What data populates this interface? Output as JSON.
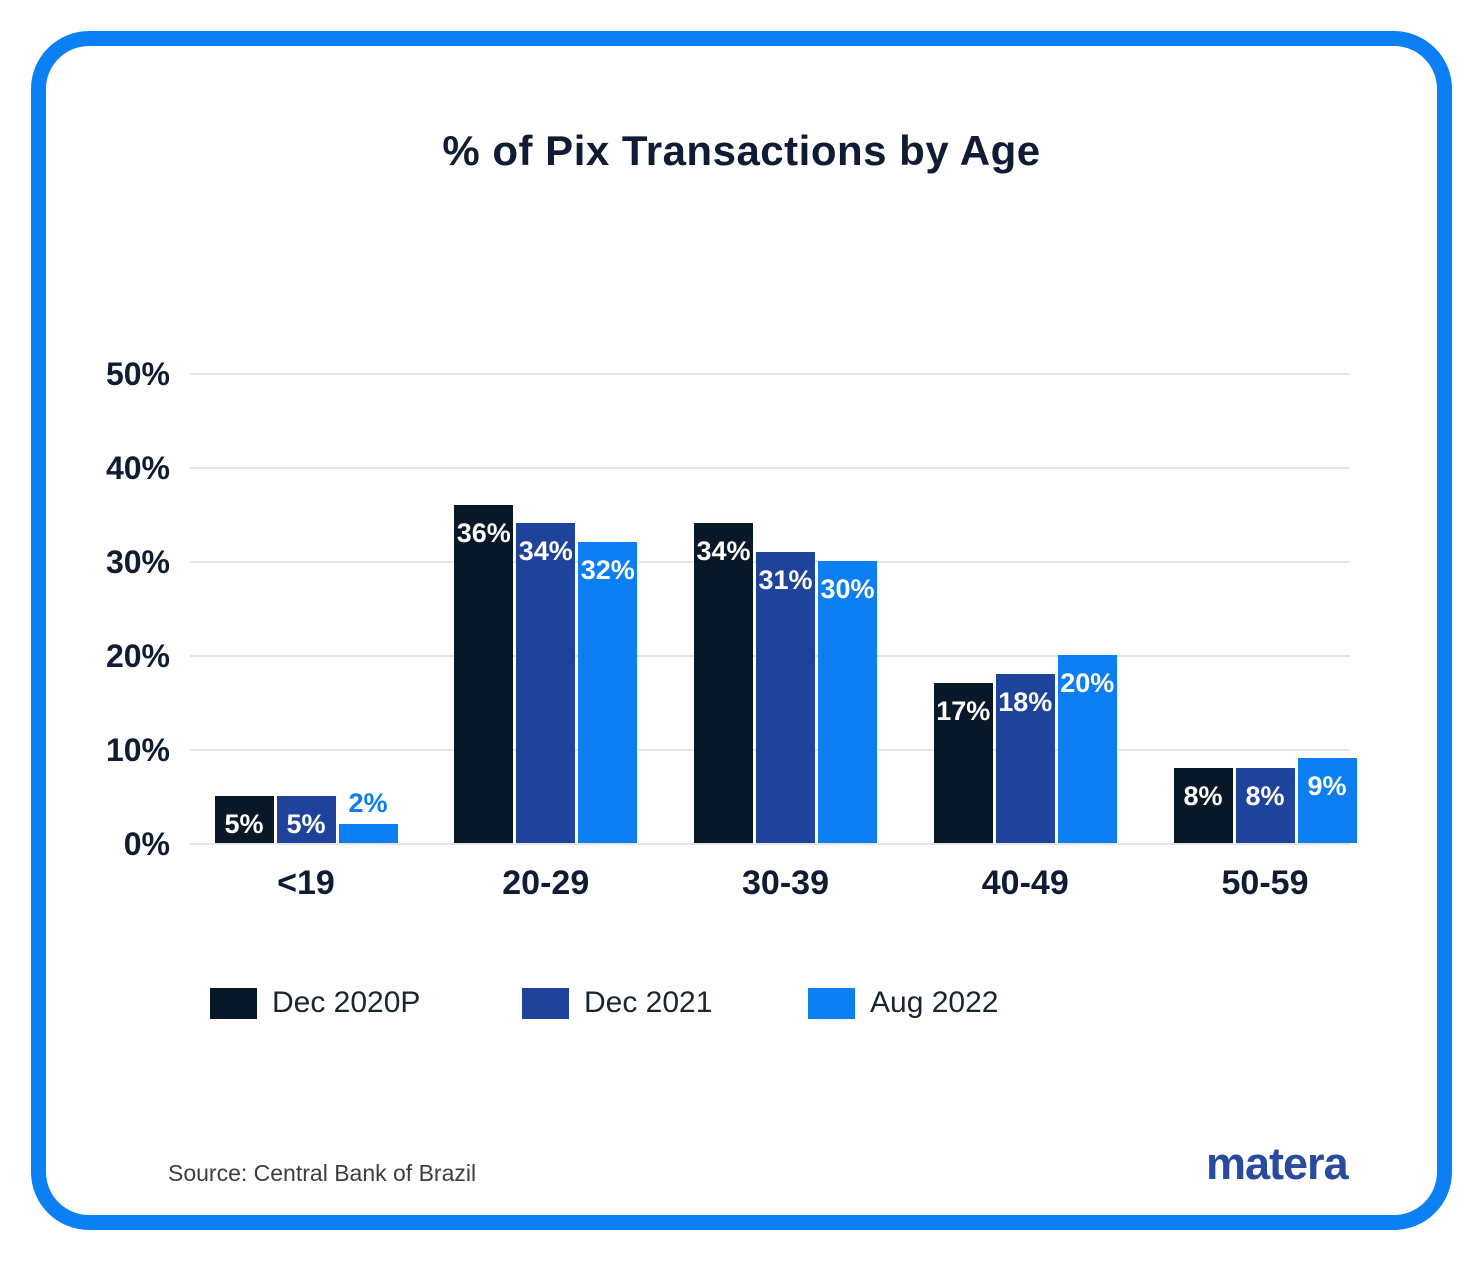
{
  "chart_data": {
    "type": "bar",
    "title": "% of Pix Transactions by Age",
    "categories": [
      "<19",
      "20-29",
      "30-39",
      "40-49",
      "50-59"
    ],
    "series": [
      {
        "name": "Dec 2020P",
        "color": "#081828",
        "values": [
          5,
          36,
          34,
          17,
          8
        ]
      },
      {
        "name": "Dec 2021",
        "color": "#1f439a",
        "values": [
          5,
          34,
          31,
          18,
          8
        ]
      },
      {
        "name": "Aug 2022",
        "color": "#0b7ff2",
        "values": [
          2,
          32,
          30,
          20,
          9
        ]
      }
    ],
    "value_labels": {
      "Dec 2020P": [
        "5%",
        "36%",
        "34%",
        "17%",
        "8%"
      ],
      "Dec 2021": [
        "5%",
        "34%",
        "31%",
        "18%",
        "8%"
      ],
      "Aug 2022": [
        "2%",
        "32%",
        "30%",
        "20%",
        "9%"
      ]
    },
    "y_ticks": [
      "50%",
      "40%",
      "30%",
      "20%",
      "10%",
      "0%"
    ],
    "ylim": [
      0,
      50
    ],
    "grid": true,
    "legend_position": "bottom-left"
  },
  "footer": {
    "source": "Source: Central Bank of Brazil",
    "logo_text": "matera"
  },
  "colors": {
    "frame": "#0b80f5",
    "heading_text": "#0f1c33",
    "gridline": "#e6e6ea",
    "bar_label_inside": "#ffffff",
    "source_text": "#3d3d3d",
    "logo": "#2a4aa0"
  }
}
